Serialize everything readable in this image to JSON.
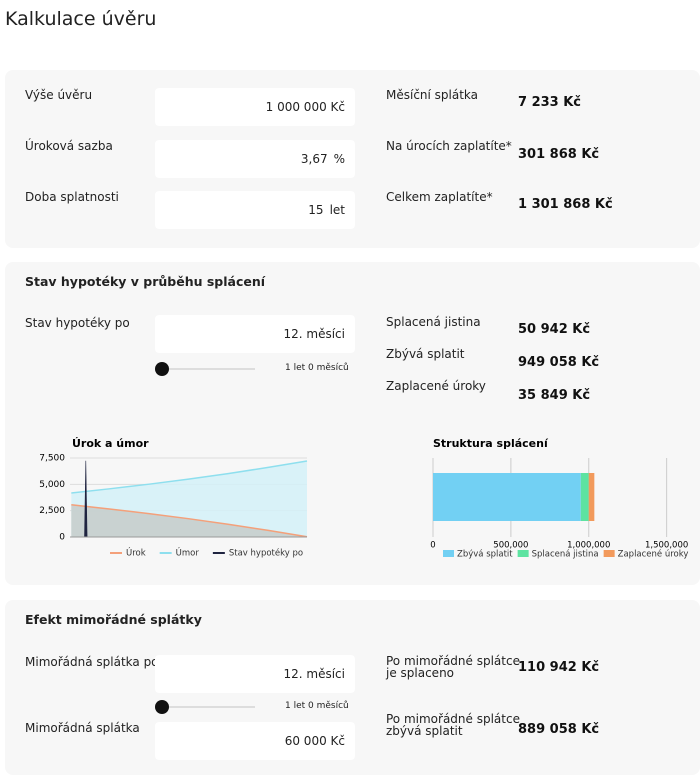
{
  "title": "Kalkulace úvěru",
  "loan": {
    "fields": [
      {
        "label": "Výše úvěru",
        "value": "1 000 000 Kč"
      },
      {
        "label": "Úroková sazba",
        "value": "3,67",
        "unit": "%"
      },
      {
        "label": "Doba splatnosti",
        "value": "15",
        "unit": "let"
      }
    ],
    "results": [
      {
        "label": "Měsíční splátka",
        "value": "7 233 Kč"
      },
      {
        "label": "Na úrocích zaplatíte*",
        "value": "301 868 Kč"
      },
      {
        "label": "Celkem zaplatíte*",
        "value": "1 301 868 Kč"
      }
    ]
  },
  "status": {
    "title": "Stav hypotéky v průběhu splácení",
    "field": {
      "label": "Stav hypotéky po",
      "value": "12. měsíci"
    },
    "slider_label": "1 let 0 měsíců",
    "results": [
      {
        "label": "Splacená jistina",
        "value": "50 942 Kč"
      },
      {
        "label": "Zbývá splatit",
        "value": "949 058 Kč"
      },
      {
        "label": "Zaplacené úroky",
        "value": "35 849 Kč"
      }
    ]
  },
  "extra": {
    "title": "Efekt mimořádné splátky",
    "fields": [
      {
        "label": "Mimořádná splátka po",
        "value": "12. měsíci"
      },
      {
        "label": "Mimořádná splátka",
        "value": "60 000 Kč"
      }
    ],
    "slider_label": "1 let 0 měsíců",
    "results": [
      {
        "label": [
          "Po mimořádné splátce",
          "je splaceno"
        ],
        "value": "110 942 Kč"
      },
      {
        "label": [
          "Po mimořádné splátce",
          "zbývá splatit"
        ],
        "value": "889 058 Kč"
      }
    ]
  },
  "chart_data": [
    {
      "type": "area",
      "title": "Úrok a úmor",
      "x": [
        1,
        30,
        60,
        90,
        120,
        150,
        180
      ],
      "xlim": [
        0,
        180
      ],
      "ylim": [
        0,
        7500
      ],
      "yticks": [
        0,
        {
          "value": 2500,
          "label": "2,500"
        },
        {
          "value": 5000,
          "label": "5,000"
        },
        {
          "value": 7500,
          "label": "7,500"
        }
      ],
      "grid": true,
      "legend": "bottom",
      "series": [
        {
          "name": "Úrok",
          "color": "#f4a07a",
          "fill": "#c5cdca",
          "values": [
            3058,
            2658,
            2219,
            1738,
            1213,
            636,
            22
          ]
        },
        {
          "name": "Úmor",
          "color": "#8edfee",
          "fill": "#d3f1f8",
          "values": [
            4175,
            4575,
            5014,
            5495,
            6020,
            6597,
            7211
          ]
        },
        {
          "name": "Stav hypotéky po",
          "color": "#1f2440",
          "x": [
            12
          ],
          "values": [
            7233
          ]
        }
      ]
    },
    {
      "type": "stacked-hbar",
      "title": "Struktura splácení",
      "xlim": [
        0,
        1650000
      ],
      "xticks": [
        0,
        {
          "value": 500000,
          "label": "500,000"
        },
        {
          "value": 1000000,
          "label": "1,000,000"
        },
        {
          "value": 1500000,
          "label": "1,500,000"
        }
      ],
      "grid": true,
      "legend": "bottom",
      "series": [
        {
          "name": "Zbývá splatit",
          "color": "#72d0f3",
          "values": [
            949058
          ]
        },
        {
          "name": "Splacená jistina",
          "color": "#5de3a1",
          "values": [
            50942
          ]
        },
        {
          "name": "Zaplacené úroky",
          "color": "#f29a5c",
          "values": [
            35849
          ]
        }
      ]
    }
  ]
}
